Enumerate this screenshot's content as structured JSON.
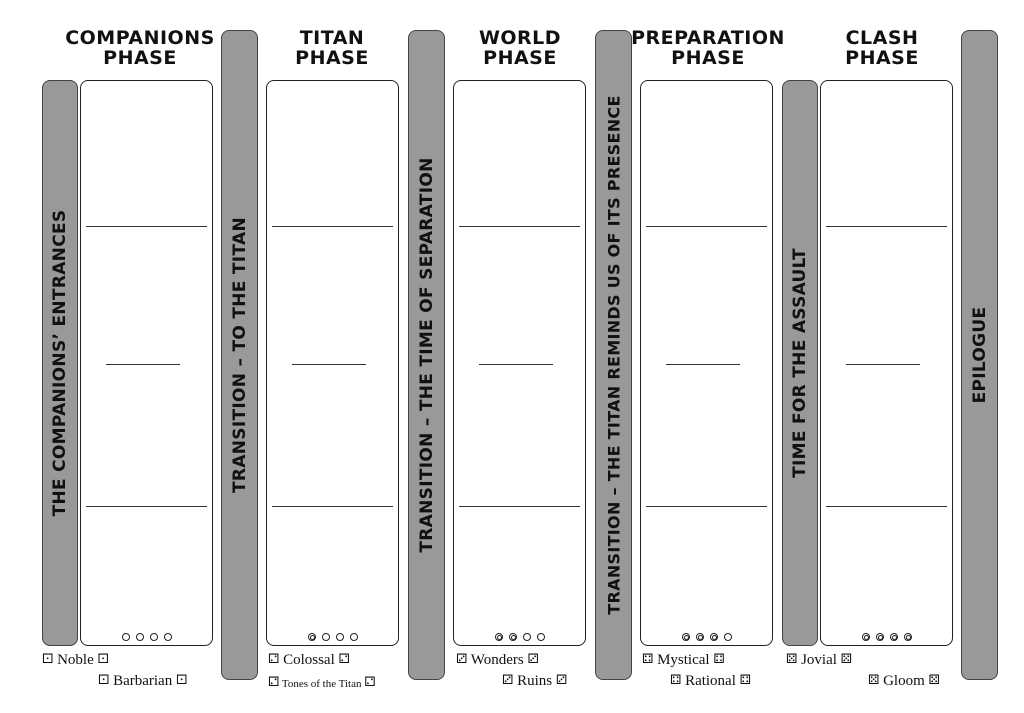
{
  "phases": [
    {
      "line1": "Companions",
      "line2": "Phase"
    },
    {
      "line1": "Titan",
      "line2": "Phase"
    },
    {
      "line1": "World",
      "line2": "Phase"
    },
    {
      "line1": "Preparation",
      "line2": "Phase"
    },
    {
      "line1": "Clash",
      "line2": "Phase"
    }
  ],
  "bars": [
    "The Companions’ Entrances",
    "Transition – To the Titan",
    "Transition – The Time of Separation",
    "Transition – The Titan reminds us of its Presence",
    "Time for the Assault",
    "Epilogue"
  ],
  "circles": [
    {
      "filled": 0,
      "total": 4
    },
    {
      "filled": 1,
      "total": 4
    },
    {
      "filled": 2,
      "total": 4
    },
    {
      "filled": 3,
      "total": 4
    },
    {
      "filled": 4,
      "total": 4
    }
  ],
  "tones": {
    "noble": {
      "label": "Noble",
      "die": "⚀"
    },
    "barbarian": {
      "label": "Barbarian",
      "die": "⚀"
    },
    "colossal": {
      "label": "Colossal",
      "die": "⚁"
    },
    "tones_titan": {
      "label": "Tones of the Titan",
      "die": "⚁"
    },
    "wonders": {
      "label": "Wonders",
      "die": "⚂"
    },
    "ruins": {
      "label": "Ruins",
      "die": "⚂"
    },
    "mystical": {
      "label": "Mystical",
      "die": "⚃"
    },
    "rational": {
      "label": "Rational",
      "die": "⚃"
    },
    "jovial": {
      "label": "Jovial",
      "die": "⚄"
    },
    "gloom": {
      "label": "Gloom",
      "die": "⚄"
    }
  }
}
